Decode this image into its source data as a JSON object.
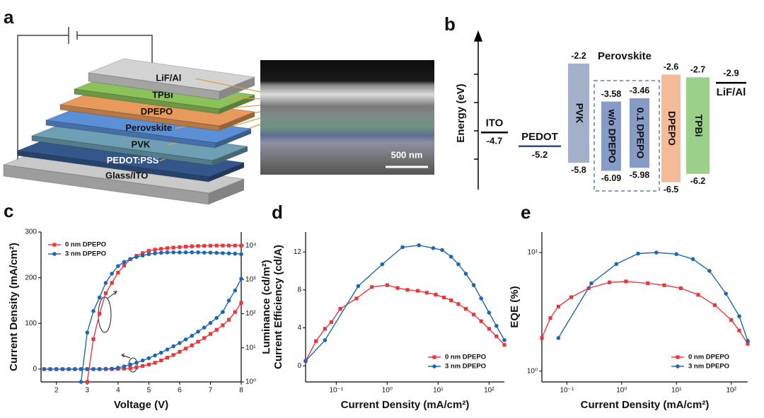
{
  "panel_labels": [
    "a",
    "b",
    "c",
    "d",
    "e"
  ],
  "device": {
    "layers": [
      {
        "name": "LiF/Al",
        "color": "#d3d3d3"
      },
      {
        "name": "TPBi",
        "color": "#8cc25a"
      },
      {
        "name": "DPEPO",
        "color": "#e89a5c"
      },
      {
        "name": "Perovskite",
        "color": "#5b8fd6"
      },
      {
        "name": "PVK",
        "color": "#6e9fb2"
      },
      {
        "name": "PEDOT:PSS",
        "color": "#34568a"
      },
      {
        "name": "Glass/ITO",
        "color": "#c9c9c9"
      }
    ],
    "scale_bar": "500 nm"
  },
  "energy_diagram": {
    "axis_label": "Energy (eV)",
    "group_label": "Perovskite",
    "levels": [
      {
        "name": "ITO",
        "value": -4.7,
        "color": "#000000"
      },
      {
        "name": "PEDOT",
        "value": -5.2,
        "color": "#2b4c7e"
      },
      {
        "name": "LiF/Al",
        "value": -2.9,
        "color": "#000000"
      }
    ],
    "bands": [
      {
        "name": "PVK",
        "top": -2.2,
        "bottom": -5.8,
        "color": "#9aaac4"
      },
      {
        "name": "w/o DPEPO",
        "top": -3.58,
        "bottom": -6.09,
        "color": "#7d93c2"
      },
      {
        "name": "0.1 DPEPO",
        "top": -3.46,
        "bottom": -5.98,
        "color": "#7d93c2"
      },
      {
        "name": "DPEPO",
        "top": -2.6,
        "bottom": -6.5,
        "color": "#f2b58e"
      },
      {
        "name": "TPBi",
        "top": -2.7,
        "bottom": -6.2,
        "color": "#93cc80"
      }
    ]
  },
  "chart_data": [
    {
      "type": "line",
      "xlabel": "Voltage (V)",
      "ylabel": "Current Density (mA/cm²)",
      "y2label": "Luminance (cd/m²)",
      "x": [
        1.6,
        1.8,
        2.0,
        2.2,
        2.4,
        2.6,
        2.8,
        3.0,
        3.2,
        3.4,
        3.6,
        3.8,
        4.0,
        4.2,
        4.4,
        4.6,
        4.8,
        5.0,
        5.2,
        5.4,
        5.6,
        5.8,
        6.0,
        6.2,
        6.4,
        6.6,
        6.8,
        7.0,
        7.2,
        7.4,
        7.6,
        7.8,
        8.0
      ],
      "xlim": [
        1.5,
        8
      ],
      "xticks": [
        2,
        3,
        4,
        5,
        6,
        7,
        8
      ],
      "ylim": [
        -28,
        300
      ],
      "yticks": [
        0,
        100,
        200,
        300
      ],
      "y2lim": [
        1,
        25000
      ],
      "y2log": true,
      "y2ticks": [
        {
          "value": 1,
          "label": "10⁰"
        },
        {
          "value": 10,
          "label": "10¹"
        },
        {
          "value": 100,
          "label": "10²"
        },
        {
          "value": 1000,
          "label": "10³"
        },
        {
          "value": 10000,
          "label": "10⁴"
        }
      ],
      "legend": "upper left",
      "series": [
        {
          "name": "0 nm DPEPO",
          "color": "#e8383d",
          "marker": "square",
          "values": [
            0,
            0,
            0,
            0,
            0,
            0,
            0,
            0,
            0,
            0,
            0,
            0,
            0.5,
            1,
            2,
            4,
            7,
            10,
            14,
            19,
            25,
            31,
            38,
            45,
            52,
            60,
            68,
            77,
            86,
            96,
            108,
            125,
            145
          ]
        },
        {
          "name": "3 nm DPEPO",
          "color": "#1f66b5",
          "marker": "circle",
          "values": [
            0,
            0,
            0,
            0,
            0,
            0,
            0,
            0,
            0,
            0,
            0.5,
            1,
            3,
            6,
            10,
            14,
            19,
            24,
            30,
            36,
            43,
            50,
            57,
            65,
            73,
            82,
            91,
            101,
            112,
            125,
            150,
            172,
            198
          ]
        },
        {
          "name": "0 nm DPEPO",
          "color": "#e8383d",
          "marker": "square",
          "axis": "y2",
          "values": [
            null,
            null,
            null,
            null,
            null,
            null,
            null,
            1,
            18,
            100,
            400,
            800,
            1600,
            2600,
            4000,
            5000,
            6000,
            7000,
            7600,
            8000,
            8400,
            8700,
            9000,
            9300,
            9500,
            9700,
            9800,
            9900,
            10000,
            10000,
            10000,
            10000,
            10000
          ]
        },
        {
          "name": "3 nm DPEPO",
          "color": "#1f66b5",
          "marker": "circle",
          "axis": "y2",
          "values": [
            null,
            null,
            null,
            null,
            null,
            null,
            1,
            28,
            120,
            300,
            800,
            1500,
            2500,
            3300,
            4000,
            4600,
            5100,
            5600,
            5900,
            6100,
            6300,
            6300,
            6300,
            6300,
            6300,
            6300,
            6200,
            6200,
            6100,
            6000,
            5900,
            5800,
            5600
          ]
        }
      ]
    },
    {
      "type": "line",
      "xlabel": "Current Density (mA/cm²)",
      "ylabel": "Current Efficiency (cd/A)",
      "xlog": true,
      "xlim": [
        0.025,
        200
      ],
      "xticks": [
        {
          "value": 0.1,
          "label": "10⁻¹"
        },
        {
          "value": 1,
          "label": "10⁰"
        },
        {
          "value": 10,
          "label": "10¹"
        },
        {
          "value": 100,
          "label": "10²"
        }
      ],
      "ylim": [
        -1.7,
        14.1
      ],
      "yticks": [
        0,
        4,
        8,
        12
      ],
      "legend": "lower right",
      "series": [
        {
          "name": "0 nm DPEPO",
          "color": "#e8383d",
          "marker": "square",
          "x": [
            0.025,
            0.04,
            0.06,
            0.08,
            0.12,
            0.25,
            0.5,
            1,
            1.6,
            2.5,
            4,
            6,
            9,
            13,
            18,
            25,
            35,
            50,
            70,
            100,
            140,
            200
          ],
          "values": [
            0.5,
            2.6,
            3.9,
            4.6,
            6.0,
            7.1,
            8.3,
            8.5,
            8.2,
            8.0,
            7.9,
            7.7,
            7.5,
            7.2,
            6.9,
            6.5,
            6.0,
            5.4,
            4.7,
            3.9,
            3.1,
            2.2
          ]
        },
        {
          "name": "3 nm DPEPO",
          "color": "#1f66b5",
          "marker": "circle",
          "x": [
            0.025,
            0.06,
            0.27,
            0.8,
            2,
            4.2,
            8,
            12,
            18,
            25,
            35,
            50,
            70,
            100,
            140,
            200
          ],
          "values": [
            0.5,
            2.7,
            8.4,
            10.7,
            12.5,
            12.7,
            12.4,
            12.2,
            11.5,
            10.7,
            9.7,
            8.5,
            7.1,
            5.6,
            4.2,
            2.7
          ]
        }
      ]
    },
    {
      "type": "line",
      "xlabel": "Current Density (mA/cm²)",
      "ylabel": "EQE (%)",
      "xlog": true,
      "xlim": [
        0.035,
        200
      ],
      "xticks": [
        {
          "value": 0.1,
          "label": "10⁻¹"
        },
        {
          "value": 1,
          "label": "10⁰"
        },
        {
          "value": 10,
          "label": "10¹"
        },
        {
          "value": 100,
          "label": "10²"
        }
      ],
      "ylog": true,
      "ylim": [
        0.81,
        14.9
      ],
      "yticks": [
        {
          "value": 1,
          "label": "10⁰"
        },
        {
          "value": 10,
          "label": "10¹"
        }
      ],
      "legend": "lower right",
      "series": [
        {
          "name": "0 nm DPEPO",
          "color": "#e8383d",
          "marker": "square",
          "x": [
            0.035,
            0.05,
            0.07,
            0.12,
            0.25,
            0.6,
            1.2,
            3,
            6,
            12,
            25,
            50,
            100,
            140,
            200
          ],
          "values": [
            1.9,
            2.8,
            3.5,
            4.2,
            5.0,
            5.6,
            5.7,
            5.5,
            5.3,
            5.0,
            4.4,
            3.6,
            2.7,
            2.2,
            1.7
          ]
        },
        {
          "name": "3 nm DPEPO",
          "color": "#1f66b5",
          "marker": "circle",
          "x": [
            0.07,
            0.28,
            0.8,
            2,
            4.3,
            10,
            20,
            40,
            80,
            140,
            200
          ],
          "values": [
            1.9,
            5.5,
            8.0,
            9.8,
            10.0,
            9.7,
            8.8,
            7.0,
            4.5,
            2.9,
            1.8
          ]
        }
      ]
    }
  ]
}
